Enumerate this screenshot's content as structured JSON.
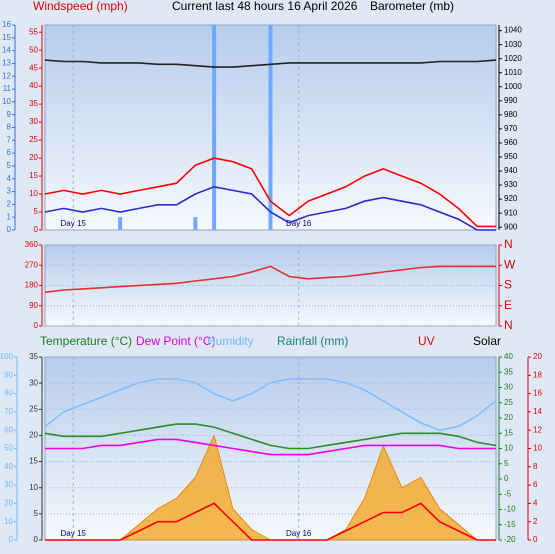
{
  "chart_data": [
    {
      "type": "line",
      "headers": [
        {
          "text": "Windspeed (mph)",
          "color": "#e00000"
        },
        {
          "text": "Current last 48 hours 16 April 2026",
          "color": "#000000"
        },
        {
          "text": "Barometer (mb)",
          "color": "#000000"
        }
      ],
      "x": [
        0,
        2,
        4,
        6,
        8,
        10,
        12,
        14,
        16,
        18,
        20,
        22,
        24,
        26,
        28,
        30,
        32,
        34,
        36,
        38,
        40,
        42,
        44,
        46,
        48
      ],
      "xlim": [
        0,
        48
      ],
      "xticks": [
        {
          "value": 3,
          "label": "Day 15"
        },
        {
          "value": 27,
          "label": "Day 16"
        }
      ],
      "axes": [
        {
          "side": "left",
          "color": "#3a6fd8",
          "lim": [
            0,
            16
          ],
          "ticks": [
            0,
            1,
            2,
            3,
            4,
            5,
            6,
            7,
            8,
            9,
            10,
            11,
            12,
            13,
            14,
            15,
            16
          ]
        },
        {
          "side": "left",
          "color": "#e00000",
          "lim": [
            0,
            57
          ],
          "ticks": [
            0,
            5,
            10,
            15,
            20,
            25,
            30,
            35,
            40,
            45,
            50,
            55
          ]
        },
        {
          "side": "right",
          "color": "#000000",
          "lim": [
            898,
            1044
          ],
          "ticks": [
            900,
            910,
            920,
            930,
            940,
            950,
            960,
            970,
            980,
            990,
            1000,
            1010,
            1020,
            1030,
            1040
          ]
        }
      ],
      "series": [
        {
          "kind": "bar",
          "axis": 0,
          "color": "#6fa8ff",
          "values": [
            0,
            0,
            0,
            0,
            1,
            0,
            0,
            0,
            1,
            16,
            0,
            0,
            16,
            0,
            0,
            0,
            0,
            0,
            0,
            0,
            0,
            0,
            0,
            0,
            0
          ]
        },
        {
          "kind": "line",
          "axis": 1,
          "color": "#ff0000",
          "values": [
            10,
            11,
            10,
            11,
            10,
            11,
            12,
            13,
            18,
            20,
            19,
            17,
            8,
            4,
            8,
            10,
            12,
            15,
            17,
            15,
            13,
            10,
            6,
            1,
            1
          ]
        },
        {
          "kind": "line",
          "axis": 1,
          "color": "#2a2ad0",
          "values": [
            5,
            6,
            5,
            6,
            5,
            6,
            7,
            7,
            10,
            12,
            11,
            10,
            5,
            2,
            4,
            5,
            6,
            8,
            9,
            8,
            7,
            5,
            3,
            0,
            0
          ]
        },
        {
          "kind": "line",
          "axis": 2,
          "color": "#222222",
          "values": [
            1019,
            1018,
            1018,
            1017,
            1017,
            1017,
            1016,
            1016,
            1015,
            1014,
            1014,
            1015,
            1016,
            1017,
            1017,
            1017,
            1017,
            1017,
            1017,
            1017,
            1017,
            1018,
            1018,
            1018,
            1019
          ]
        }
      ]
    },
    {
      "type": "line",
      "headers": [],
      "x": [
        0,
        2,
        4,
        6,
        8,
        10,
        12,
        14,
        16,
        18,
        20,
        22,
        24,
        26,
        28,
        30,
        32,
        34,
        36,
        38,
        40,
        42,
        44,
        46,
        48
      ],
      "xlim": [
        0,
        48
      ],
      "xticks": [
        {
          "value": 3,
          "label": "Day 15"
        },
        {
          "value": 27,
          "label": "Day 16"
        }
      ],
      "show_xtick_labels": false,
      "axes": [
        {
          "side": "left",
          "color": "#e00000",
          "lim": [
            0,
            360
          ],
          "ticks": [
            0,
            90,
            180,
            270,
            360
          ],
          "grid": true
        },
        {
          "side": "right",
          "color": "#e00000",
          "lim": [
            0,
            360
          ],
          "big": true,
          "ticks": [
            {
              "value": 360,
              "label": "N"
            },
            {
              "value": 270,
              "label": "W"
            },
            {
              "value": 180,
              "label": "S"
            },
            {
              "value": 90,
              "label": "E"
            },
            {
              "value": 0,
              "label": "N"
            }
          ]
        }
      ],
      "series": [
        {
          "kind": "line",
          "axis": 0,
          "color": "#e03030",
          "values": [
            150,
            160,
            165,
            170,
            175,
            180,
            185,
            190,
            200,
            210,
            220,
            240,
            265,
            220,
            210,
            215,
            220,
            230,
            240,
            250,
            260,
            265,
            265,
            265,
            265
          ]
        }
      ]
    },
    {
      "type": "line",
      "headers": [
        {
          "text": "Temperature (°C)",
          "color": "#1f7a1f"
        },
        {
          "text": "Dew Point (°C)",
          "color": "#e000e0"
        },
        {
          "text": "Humidity",
          "color": "#6fb6ff"
        },
        {
          "text": "Rainfall (mm)",
          "color": "#1a8080"
        },
        {
          "text": "UV",
          "color": "#e00000"
        },
        {
          "text": "Solar",
          "color": "#000000"
        }
      ],
      "x": [
        0,
        2,
        4,
        6,
        8,
        10,
        12,
        14,
        16,
        18,
        20,
        22,
        24,
        26,
        28,
        30,
        32,
        34,
        36,
        38,
        40,
        42,
        44,
        46,
        48
      ],
      "xlim": [
        0,
        48
      ],
      "xticks": [
        {
          "value": 3,
          "label": "Day 15"
        },
        {
          "value": 27,
          "label": "Day 16"
        }
      ],
      "axes": [
        {
          "side": "left",
          "color": "#6fb6ff",
          "lim": [
            0,
            100
          ],
          "ticks": [
            0,
            10,
            20,
            30,
            40,
            50,
            60,
            70,
            80,
            90,
            100
          ]
        },
        {
          "side": "left",
          "color": "#333333",
          "lim": [
            0,
            35
          ],
          "ticks": [
            0,
            5,
            10,
            15,
            20,
            25,
            30,
            35
          ],
          "grid": true
        },
        {
          "side": "right",
          "color": "#1f7a1f",
          "lim": [
            -20,
            40
          ],
          "ticks": [
            -20,
            -15,
            -10,
            -5,
            0,
            5,
            10,
            15,
            20,
            25,
            30,
            35,
            40
          ]
        },
        {
          "side": "right",
          "color": "#e00000",
          "lim": [
            0,
            20
          ],
          "ticks": [
            0,
            2,
            4,
            6,
            8,
            10,
            12,
            14,
            16,
            18,
            20
          ]
        }
      ],
      "series": [
        {
          "kind": "area",
          "axis": 1,
          "color": "#f5a623",
          "values": [
            0,
            0,
            0,
            0,
            0,
            3,
            6,
            8,
            12,
            20,
            6,
            2,
            0,
            0,
            0,
            0,
            2,
            8,
            18,
            10,
            12,
            6,
            3,
            0,
            0
          ]
        },
        {
          "kind": "line",
          "axis": 0,
          "color": "#7fbfff",
          "values": [
            62,
            70,
            74,
            78,
            82,
            86,
            88,
            88,
            86,
            80,
            76,
            80,
            86,
            88,
            88,
            88,
            86,
            82,
            76,
            70,
            64,
            60,
            62,
            68,
            76
          ]
        },
        {
          "kind": "line",
          "axis": 2,
          "color": "#2e8b2e",
          "values": [
            15,
            14,
            14,
            14,
            15,
            16,
            17,
            18,
            18,
            17,
            15,
            13,
            11,
            10,
            10,
            11,
            12,
            13,
            14,
            15,
            15,
            15,
            14,
            12,
            11
          ]
        },
        {
          "kind": "line",
          "axis": 2,
          "color": "#ee00ee",
          "values": [
            10,
            10,
            10,
            11,
            11,
            12,
            13,
            13,
            12,
            11,
            10,
            9,
            8,
            8,
            8,
            9,
            10,
            11,
            11,
            11,
            11,
            11,
            10,
            10,
            10
          ]
        },
        {
          "kind": "line",
          "axis": 3,
          "color": "#ff0000",
          "values": [
            0,
            0,
            0,
            0,
            0,
            1,
            2,
            2,
            3,
            4,
            2,
            0,
            0,
            0,
            0,
            0,
            1,
            2,
            3,
            3,
            4,
            2,
            1,
            0,
            0
          ]
        }
      ]
    }
  ]
}
